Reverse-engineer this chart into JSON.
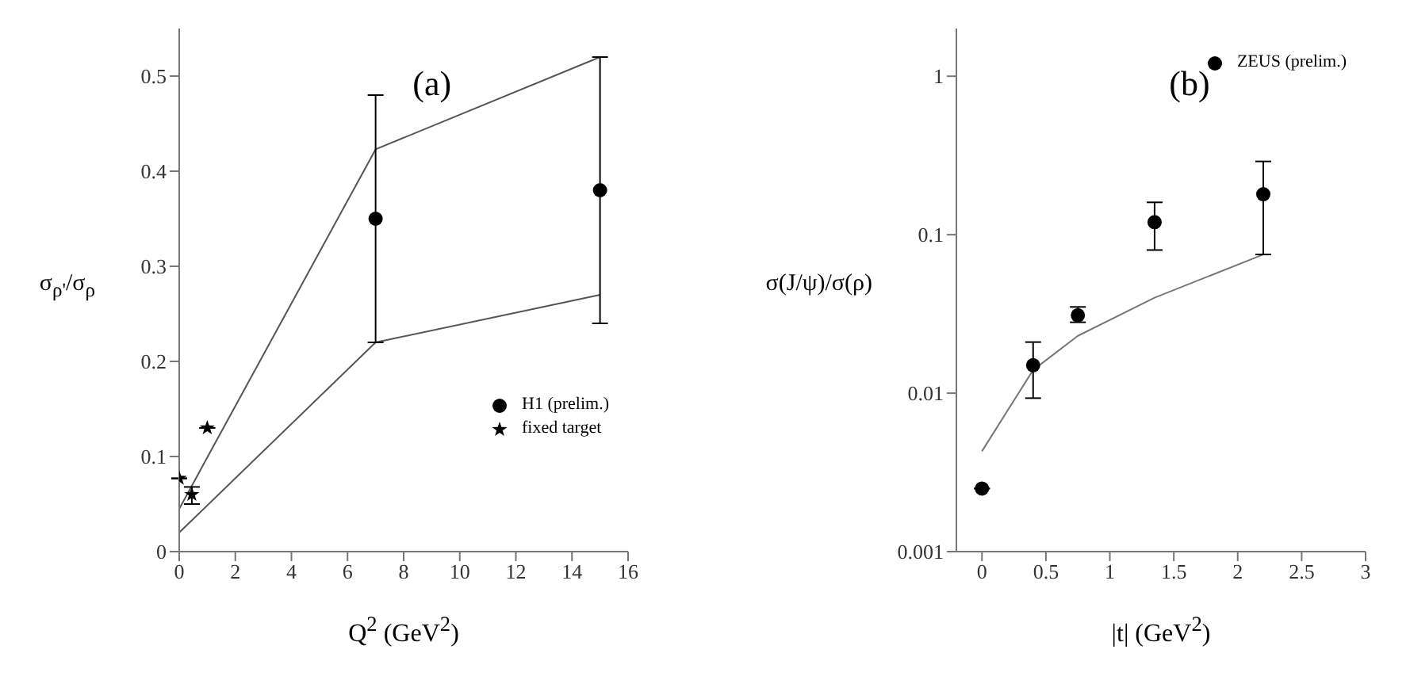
{
  "chart_data": [
    {
      "type": "scatter",
      "xlabel": "Q$^{2}$ (GeV$^{2}$)",
      "ylabel": "σ$_{ρ'}$/σ$_{ρ}$",
      "annotations": [
        "(a)"
      ],
      "xlim": [
        0,
        16
      ],
      "xticks": [
        0,
        2,
        4,
        6,
        8,
        10,
        12,
        14,
        16
      ],
      "ylim": [
        0,
        0.55
      ],
      "yticks": [
        0,
        0.1,
        0.2,
        0.3,
        0.4,
        0.5
      ],
      "grid": false,
      "legend": "bottom right",
      "series": [
        {
          "type": "line",
          "color": "#555555",
          "marker": "none",
          "x": [
            0,
            7,
            15
          ],
          "values": [
            0.045,
            0.423,
            0.52
          ]
        },
        {
          "type": "line",
          "color": "#555555",
          "marker": "none",
          "x": [
            0,
            7,
            15
          ],
          "values": [
            0.02,
            0.22,
            0.27
          ]
        },
        {
          "name": "H1 (prelim.)",
          "color": "#000000",
          "marker": "circle",
          "x": [
            7,
            15
          ],
          "values": [
            0.35,
            0.38
          ],
          "errors": [
            [
              0.22,
              0.48
            ],
            [
              0.24,
              0.52
            ]
          ]
        },
        {
          "name": "fixed target",
          "color": "#000000",
          "marker": "star",
          "x": [
            0,
            0.45,
            1
          ],
          "values": [
            0.077,
            0.06,
            0.13
          ],
          "errors": [
            null,
            [
              0.05,
              0.068
            ],
            null
          ]
        }
      ]
    },
    {
      "type": "scatter",
      "xlabel": "|t| (GeV$^{2}$)",
      "ylabel": "σ(J/ψ)/σ(ρ)",
      "annotations": [
        "(b)"
      ],
      "log": "y",
      "xlim": [
        -0.2,
        3
      ],
      "xticks": [
        0,
        0.5,
        1,
        1.5,
        2,
        2.5,
        3
      ],
      "ylim": [
        0.001,
        2
      ],
      "yticks": [
        0.001,
        0.01,
        0.1,
        1
      ],
      "grid": false,
      "legend": "top right",
      "series": [
        {
          "type": "line",
          "color": "#777777",
          "marker": "none",
          "x": [
            0,
            0.4,
            0.75,
            1.35,
            2.2
          ],
          "values": [
            0.0043,
            0.014,
            0.023,
            0.04,
            0.075
          ]
        },
        {
          "name": "ZEUS (prelim.)",
          "color": "#000000",
          "marker": "circle",
          "x": [
            0,
            0.4,
            0.75,
            1.35,
            2.2
          ],
          "values": [
            0.0025,
            0.015,
            0.031,
            0.12,
            0.18
          ],
          "errors": [
            null,
            [
              0.0093,
              0.021
            ],
            [
              0.028,
              0.035
            ],
            [
              0.08,
              0.16
            ],
            [
              0.075,
              0.29
            ]
          ]
        }
      ]
    }
  ]
}
